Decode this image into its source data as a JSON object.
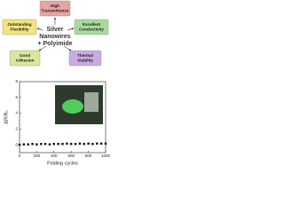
{
  "diagram": {
    "center": [
      "Silver",
      "Nanowires",
      "+ Polyimide"
    ],
    "boxes": [
      {
        "lines": [
          "High",
          "Transmittance"
        ],
        "color": "#e9a3a3"
      },
      {
        "lines": [
          "Outstanding",
          "Flexibility"
        ],
        "color": "#f3e57c"
      },
      {
        "lines": [
          "Excellent",
          "Conductivity"
        ],
        "color": "#a6dc9b"
      },
      {
        "lines": [
          "Good",
          "Adhesion"
        ],
        "color": "#d6e89a"
      },
      {
        "lines": [
          "Thermal",
          "Stability"
        ],
        "color": "#c9abe2"
      }
    ]
  },
  "chart_data": {
    "type": "scatter",
    "x_label": "Folding cycles",
    "y_label": "ΔR/R₀",
    "x": [
      0,
      50,
      100,
      150,
      200,
      250,
      300,
      350,
      400,
      450,
      500,
      550,
      600,
      650,
      700,
      750,
      800,
      850,
      900,
      950,
      1000
    ],
    "values": [
      0,
      0.05,
      0.05,
      0.1,
      0.05,
      0.1,
      0.1,
      0.05,
      0.1,
      0.1,
      0.1,
      0.15,
      0.1,
      0.1,
      0.15,
      0.1,
      0.15,
      0.1,
      0.15,
      0.15,
      0.15
    ],
    "color": "#111111",
    "xlim": [
      0,
      1000
    ],
    "xticks": [
      0,
      200,
      400,
      600,
      800,
      1000
    ],
    "ylim": [
      -1,
      8
    ],
    "yticks": [
      0,
      2,
      4,
      6,
      8
    ]
  }
}
